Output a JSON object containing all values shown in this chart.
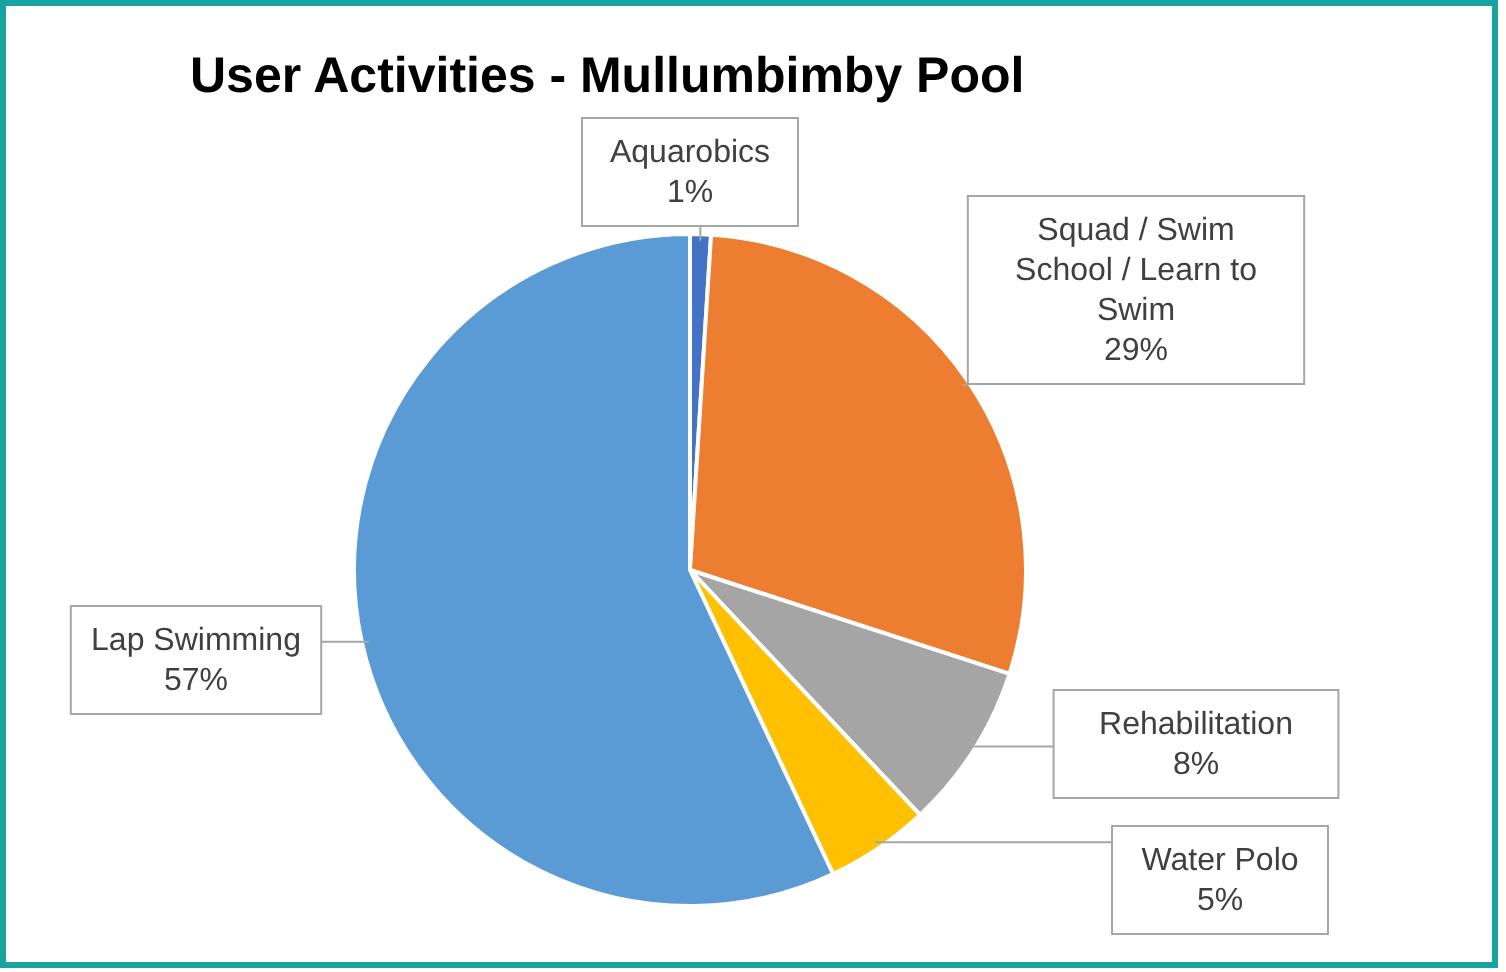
{
  "chart_data": {
    "type": "pie",
    "title": "User Activities - Mullumbimby Pool",
    "categories": [
      "Aquarobics",
      "Squad / Swim School / Learn to Swim",
      "Rehabilitation",
      "Water Polo",
      "Lap Swimming"
    ],
    "values": [
      1,
      29,
      8,
      5,
      57
    ],
    "value_labels": [
      "1%",
      "29%",
      "8%",
      "5%",
      "57%"
    ],
    "colors": [
      "#4472c4",
      "#ed7d31",
      "#a5a5a5",
      "#ffc000",
      "#5b9bd5"
    ]
  }
}
